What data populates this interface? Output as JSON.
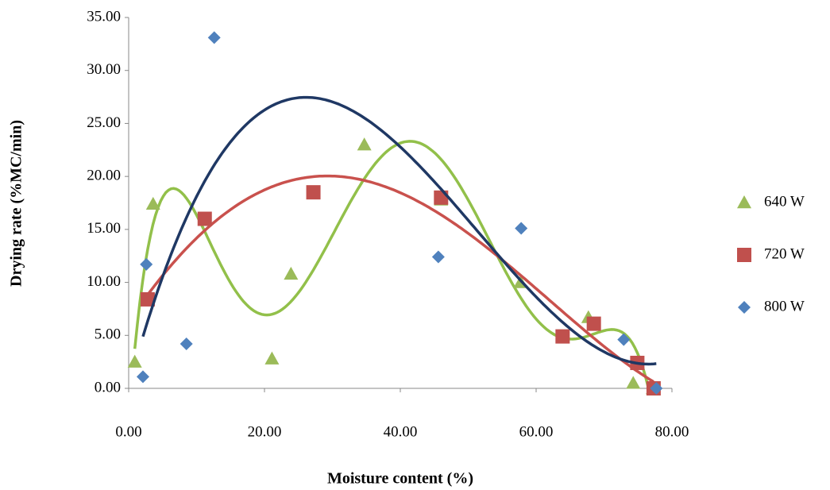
{
  "chart_data": {
    "type": "scatter",
    "xlabel": "Moisture content (%)",
    "ylabel": "Drying rate (%MC/min)",
    "xlim": [
      0,
      80
    ],
    "xticks": [
      {
        "value": 0,
        "label": "0.00"
      },
      {
        "value": 20,
        "label": "20.00"
      },
      {
        "value": 40,
        "label": "40.00"
      },
      {
        "value": 60,
        "label": "60.00"
      },
      {
        "value": 80,
        "label": "80.00"
      }
    ],
    "ylim": [
      0,
      35
    ],
    "yticks": [
      {
        "value": 0,
        "label": "0.00"
      },
      {
        "value": 5,
        "label": "5.00"
      },
      {
        "value": 10,
        "label": "10.00"
      },
      {
        "value": 15,
        "label": "15.00"
      },
      {
        "value": 20,
        "label": "20.00"
      },
      {
        "value": 25,
        "label": "25.00"
      },
      {
        "value": 30,
        "label": "30.00"
      },
      {
        "value": 35,
        "label": "35.00"
      }
    ],
    "legend": "right",
    "series": [
      {
        "name": "640 W",
        "color": "#9bbb59",
        "marker": "triangle",
        "trendline": {
          "type": "polynomial",
          "order": 6,
          "color": "#92c04a"
        },
        "x": [
          0.9,
          3.6,
          21.1,
          23.9,
          34.7,
          46.0,
          57.7,
          67.7,
          74.3,
          77.2
        ],
        "values": [
          2.5,
          17.4,
          2.8,
          10.8,
          23.0,
          17.8,
          10.0,
          6.7,
          0.5,
          0
        ]
      },
      {
        "name": "720 W",
        "color": "#c0504d",
        "marker": "square",
        "trendline": {
          "type": "polynomial",
          "order": 4,
          "color": "#c9514d"
        },
        "x": [
          2.8,
          11.2,
          27.2,
          46.0,
          63.9,
          68.5,
          74.9,
          77.3
        ],
        "values": [
          8.4,
          16.0,
          18.5,
          18.0,
          4.9,
          6.1,
          2.4,
          0
        ]
      },
      {
        "name": "800 W",
        "color": "#4f81bd",
        "marker": "diamond",
        "trendline": {
          "type": "polynomial",
          "order": 3,
          "color": "#1f3864"
        },
        "x": [
          2.1,
          2.6,
          8.5,
          12.6,
          45.6,
          57.8,
          72.9,
          77.7
        ],
        "values": [
          1.1,
          11.7,
          4.2,
          33.1,
          12.4,
          15.1,
          4.6,
          0
        ]
      }
    ]
  }
}
